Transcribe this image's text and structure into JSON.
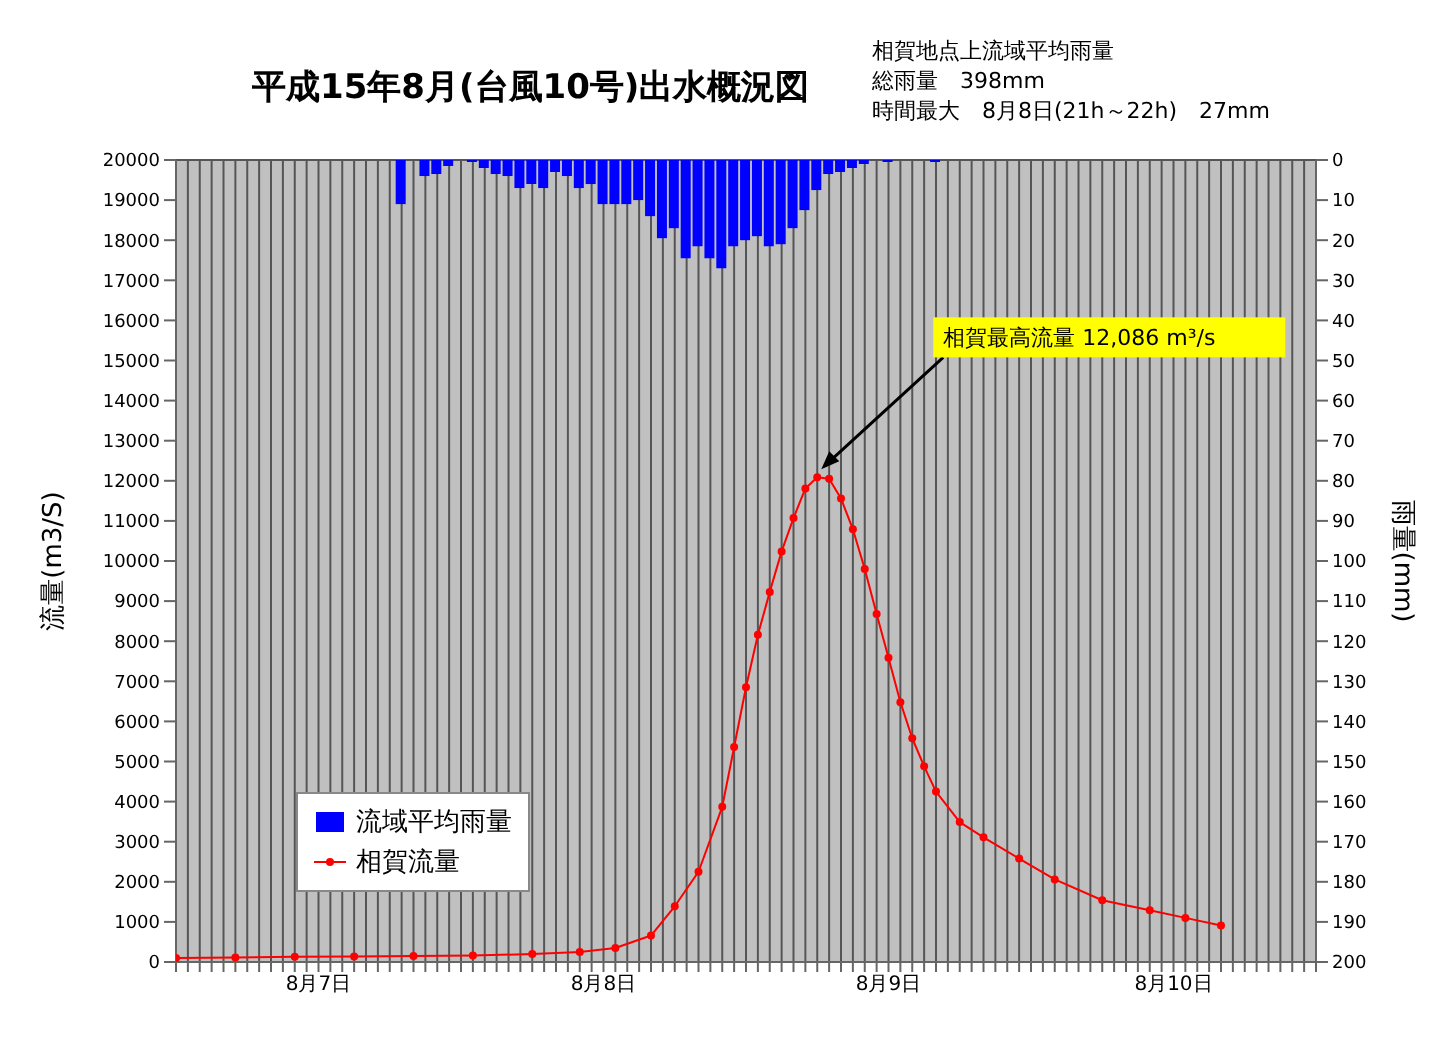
{
  "chart_data": {
    "type": "line",
    "title": "平成15年8月(台風10号)出水概況図",
    "annotations": [
      "相賀地点上流域平均雨量",
      "総雨量　398mm",
      "時間最大　8月8日(21h～22h)　27mm",
      {
        "text": "相賀最高流量 12,086 m³/s",
        "x": "--08-09T06:00",
        "y": 12086
      }
    ],
    "xlim": [
      "--08-07T00:00",
      "--08-11T00:00"
    ],
    "xticks": [
      {
        "value": "--08-07T00:00",
        "label": null
      },
      {
        "value": "--08-07T01:00",
        "label": null
      },
      {
        "value": "--08-07T02:00",
        "label": null
      },
      {
        "value": "--08-07T03:00",
        "label": null
      },
      {
        "value": "--08-07T04:00",
        "label": null
      },
      {
        "value": "--08-07T05:00",
        "label": null
      },
      {
        "value": "--08-07T06:00",
        "label": null
      },
      {
        "value": "--08-07T07:00",
        "label": null
      },
      {
        "value": "--08-07T08:00",
        "label": null
      },
      {
        "value": "--08-07T09:00",
        "label": null
      },
      {
        "value": "--08-07T10:00",
        "label": null
      },
      {
        "value": "--08-07T11:00",
        "label": null
      },
      {
        "value": "--08-07T12:00",
        "label": "8月7日"
      },
      {
        "value": "--08-07T13:00",
        "label": null
      },
      {
        "value": "--08-07T14:00",
        "label": null
      },
      {
        "value": "--08-07T15:00",
        "label": null
      },
      {
        "value": "--08-07T16:00",
        "label": null
      },
      {
        "value": "--08-07T17:00",
        "label": null
      },
      {
        "value": "--08-07T18:00",
        "label": null
      },
      {
        "value": "--08-07T19:00",
        "label": null
      },
      {
        "value": "--08-07T20:00",
        "label": null
      },
      {
        "value": "--08-07T21:00",
        "label": null
      },
      {
        "value": "--08-07T22:00",
        "label": null
      },
      {
        "value": "--08-07T23:00",
        "label": null
      },
      {
        "value": "--08-08T00:00",
        "label": null
      },
      {
        "value": "--08-08T01:00",
        "label": null
      },
      {
        "value": "--08-08T02:00",
        "label": null
      },
      {
        "value": "--08-08T03:00",
        "label": null
      },
      {
        "value": "--08-08T04:00",
        "label": null
      },
      {
        "value": "--08-08T05:00",
        "label": null
      },
      {
        "value": "--08-08T06:00",
        "label": null
      },
      {
        "value": "--08-08T07:00",
        "label": null
      },
      {
        "value": "--08-08T08:00",
        "label": null
      },
      {
        "value": "--08-08T09:00",
        "label": null
      },
      {
        "value": "--08-08T10:00",
        "label": null
      },
      {
        "value": "--08-08T11:00",
        "label": null
      },
      {
        "value": "--08-08T12:00",
        "label": "8月8日"
      },
      {
        "value": "--08-08T13:00",
        "label": null
      },
      {
        "value": "--08-08T14:00",
        "label": null
      },
      {
        "value": "--08-08T15:00",
        "label": null
      },
      {
        "value": "--08-08T16:00",
        "label": null
      },
      {
        "value": "--08-08T17:00",
        "label": null
      },
      {
        "value": "--08-08T18:00",
        "label": null
      },
      {
        "value": "--08-08T19:00",
        "label": null
      },
      {
        "value": "--08-08T20:00",
        "label": null
      },
      {
        "value": "--08-08T21:00",
        "label": null
      },
      {
        "value": "--08-08T22:00",
        "label": null
      },
      {
        "value": "--08-08T23:00",
        "label": null
      },
      {
        "value": "--08-09T00:00",
        "label": null
      },
      {
        "value": "--08-09T01:00",
        "label": null
      },
      {
        "value": "--08-09T02:00",
        "label": null
      },
      {
        "value": "--08-09T03:00",
        "label": null
      },
      {
        "value": "--08-09T04:00",
        "label": null
      },
      {
        "value": "--08-09T05:00",
        "label": null
      },
      {
        "value": "--08-09T06:00",
        "label": null
      },
      {
        "value": "--08-09T07:00",
        "label": null
      },
      {
        "value": "--08-09T08:00",
        "label": null
      },
      {
        "value": "--08-09T09:00",
        "label": null
      },
      {
        "value": "--08-09T10:00",
        "label": null
      },
      {
        "value": "--08-09T11:00",
        "label": null
      },
      {
        "value": "--08-09T12:00",
        "label": "8月9日"
      },
      {
        "value": "--08-09T13:00",
        "label": null
      },
      {
        "value": "--08-09T14:00",
        "label": null
      },
      {
        "value": "--08-09T15:00",
        "label": null
      },
      {
        "value": "--08-09T16:00",
        "label": null
      },
      {
        "value": "--08-09T17:00",
        "label": null
      },
      {
        "value": "--08-09T18:00",
        "label": null
      },
      {
        "value": "--08-09T19:00",
        "label": null
      },
      {
        "value": "--08-09T20:00",
        "label": null
      },
      {
        "value": "--08-09T21:00",
        "label": null
      },
      {
        "value": "--08-09T22:00",
        "label": null
      },
      {
        "value": "--08-09T23:00",
        "label": null
      },
      {
        "value": "--08-10T00:00",
        "label": null
      },
      {
        "value": "--08-10T01:00",
        "label": null
      },
      {
        "value": "--08-10T02:00",
        "label": null
      },
      {
        "value": "--08-10T03:00",
        "label": null
      },
      {
        "value": "--08-10T04:00",
        "label": null
      },
      {
        "value": "--08-10T05:00",
        "label": null
      },
      {
        "value": "--08-10T06:00",
        "label": null
      },
      {
        "value": "--08-10T07:00",
        "label": null
      },
      {
        "value": "--08-10T08:00",
        "label": null
      },
      {
        "value": "--08-10T09:00",
        "label": null
      },
      {
        "value": "--08-10T10:00",
        "label": null
      },
      {
        "value": "--08-10T11:00",
        "label": null
      },
      {
        "value": "--08-10T12:00",
        "label": "8月10日"
      },
      {
        "value": "--08-10T13:00",
        "label": null
      },
      {
        "value": "--08-10T14:00",
        "label": null
      },
      {
        "value": "--08-10T15:00",
        "label": null
      },
      {
        "value": "--08-10T16:00",
        "label": null
      },
      {
        "value": "--08-10T17:00",
        "label": null
      },
      {
        "value": "--08-10T18:00",
        "label": null
      },
      {
        "value": "--08-10T19:00",
        "label": null
      },
      {
        "value": "--08-10T20:00",
        "label": null
      },
      {
        "value": "--08-10T21:00",
        "label": null
      },
      {
        "value": "--08-10T22:00",
        "label": null
      },
      {
        "value": "--08-10T23:00",
        "label": null
      },
      {
        "value": "--08-11T00:00",
        "label": null
      }
    ],
    "ylabel": "流量(m3/S)",
    "y2label": "雨量(mm)",
    "ylim": [
      0,
      20000
    ],
    "yticks": [
      0,
      1000,
      2000,
      3000,
      4000,
      5000,
      6000,
      7000,
      8000,
      9000,
      10000,
      11000,
      12000,
      13000,
      14000,
      15000,
      16000,
      17000,
      18000,
      19000,
      20000
    ],
    "y2lim": [
      200,
      0
    ],
    "y2ticks": [
      0,
      10,
      20,
      30,
      40,
      50,
      60,
      70,
      80,
      90,
      100,
      110,
      120,
      130,
      140,
      150,
      160,
      170,
      180,
      190,
      200
    ],
    "grid": true,
    "legend": "bottom left",
    "series": [
      {
        "name": "流域平均雨量",
        "type": "bar",
        "axis": "y2",
        "color": "#0000ff",
        "x": [
          "--08-07T19:00",
          "--08-07T21:00",
          "--08-07T22:00",
          "--08-07T23:00",
          "--08-08T01:00",
          "--08-08T02:00",
          "--08-08T03:00",
          "--08-08T04:00",
          "--08-08T05:00",
          "--08-08T06:00",
          "--08-08T07:00",
          "--08-08T08:00",
          "--08-08T09:00",
          "--08-08T10:00",
          "--08-08T11:00",
          "--08-08T12:00",
          "--08-08T13:00",
          "--08-08T14:00",
          "--08-08T15:00",
          "--08-08T16:00",
          "--08-08T17:00",
          "--08-08T18:00",
          "--08-08T19:00",
          "--08-08T20:00",
          "--08-08T21:00",
          "--08-08T22:00",
          "--08-08T23:00",
          "--08-09T00:00",
          "--08-09T01:00",
          "--08-09T02:00",
          "--08-09T03:00",
          "--08-09T04:00",
          "--08-09T05:00",
          "--08-09T06:00",
          "--08-09T07:00",
          "--08-09T08:00",
          "--08-09T09:00",
          "--08-09T10:00",
          "--08-09T12:00",
          "--08-09T16:00"
        ],
        "values": [
          11,
          4,
          3.5,
          1.5,
          0.5,
          2,
          3.5,
          4,
          7,
          6,
          7,
          3,
          4,
          7,
          6,
          11,
          11,
          11,
          10,
          14,
          19.5,
          17,
          24.5,
          21.5,
          24.5,
          27,
          21.5,
          20,
          19,
          21.5,
          21,
          17,
          12.5,
          7.5,
          3.5,
          3,
          2,
          1,
          0.5,
          0.5
        ]
      },
      {
        "name": "相賀流量",
        "color": "#ff0000",
        "marker": "circle",
        "line_style": "solid",
        "x": [
          "--08-07T00:00",
          "--08-07T05:00",
          "--08-07T10:00",
          "--08-07T15:00",
          "--08-07T20:00",
          "--08-08T01:00",
          "--08-08T06:00",
          "--08-08T10:00",
          "--08-08T13:00",
          "--08-08T16:00",
          "--08-08T18:00",
          "--08-08T20:00",
          "--08-08T22:00",
          "--08-08T23:00",
          "--08-09T00:00",
          "--08-09T01:00",
          "--08-09T02:00",
          "--08-09T03:00",
          "--08-09T04:00",
          "--08-09T05:00",
          "--08-09T06:00",
          "--08-09T07:00",
          "--08-09T08:00",
          "--08-09T09:00",
          "--08-09T10:00",
          "--08-09T11:00",
          "--08-09T12:00",
          "--08-09T13:00",
          "--08-09T14:00",
          "--08-09T15:00",
          "--08-09T16:00",
          "--08-09T18:00",
          "--08-09T20:00",
          "--08-09T23:00",
          "--08-10T02:00",
          "--08-10T06:00",
          "--08-10T10:00",
          "--08-10T13:00",
          "--08-10T16:00"
        ],
        "values": [
          100,
          110,
          130,
          140,
          150,
          160,
          200,
          250,
          350,
          660,
          1390,
          2250,
          3870,
          5360,
          6850,
          8160,
          9230,
          10240,
          11070,
          11810,
          12086,
          12050,
          11560,
          10790,
          9800,
          8680,
          7590,
          6480,
          5580,
          4880,
          4250,
          3490,
          3110,
          2580,
          2060,
          1540,
          1290,
          1100,
          910
        ]
      }
    ]
  }
}
